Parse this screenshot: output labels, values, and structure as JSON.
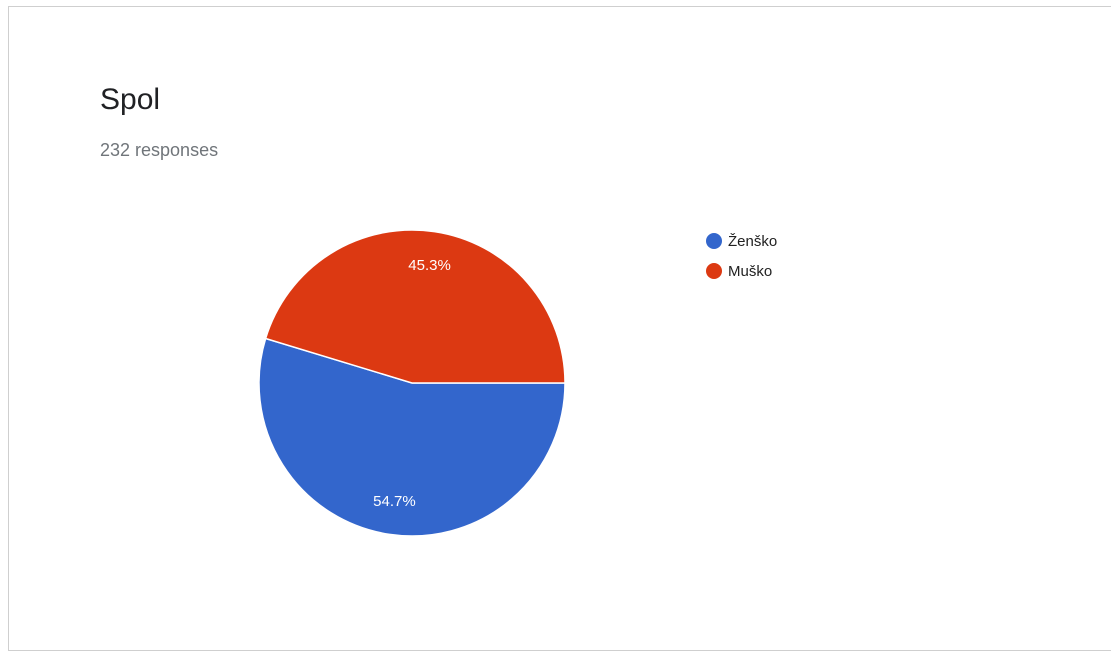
{
  "card": {
    "title": "Spol",
    "subtitle": "232 responses"
  },
  "chart_data": {
    "type": "pie",
    "categories": [
      "Ženško",
      "Muško"
    ],
    "values": [
      54.7,
      45.3
    ],
    "labels": [
      "54.7%",
      "45.3%"
    ],
    "colors": [
      "#3366cc",
      "#dc3912"
    ],
    "legend": "right",
    "start_angle_deg": 90,
    "direction": "clockwise"
  }
}
